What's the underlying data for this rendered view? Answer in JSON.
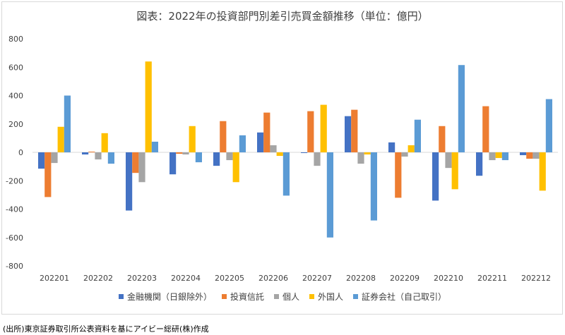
{
  "chart_data": {
    "type": "bar",
    "title": "図表：2022年の投資部門別差引売買金額推移（単位：億円）",
    "categories": [
      "202201",
      "202202",
      "202203",
      "202204",
      "202205",
      "202206",
      "202207",
      "202208",
      "202209",
      "202210",
      "202211",
      "202212"
    ],
    "series": [
      {
        "name": "金融機関（日銀除外）",
        "color": "#4472c4",
        "values": [
          -115,
          -15,
          -410,
          -155,
          -95,
          140,
          -5,
          255,
          70,
          -340,
          -165,
          -20
        ]
      },
      {
        "name": "投資信託",
        "color": "#ed7d31",
        "values": [
          -315,
          5,
          -145,
          -10,
          220,
          280,
          290,
          300,
          -320,
          185,
          325,
          -45
        ]
      },
      {
        "name": "個人",
        "color": "#a5a5a5",
        "values": [
          -75,
          -50,
          -210,
          -15,
          -55,
          50,
          -95,
          -80,
          -30,
          -110,
          -55,
          -45
        ]
      },
      {
        "name": "外国人",
        "color": "#ffc000",
        "values": [
          180,
          135,
          640,
          185,
          -210,
          -25,
          335,
          -15,
          50,
          -260,
          -40,
          -270
        ]
      },
      {
        "name": "証券会社（自己取引）",
        "color": "#5b9bd5",
        "values": [
          400,
          -80,
          75,
          -70,
          120,
          -305,
          -600,
          -480,
          230,
          615,
          -55,
          375
        ]
      }
    ],
    "ylim": [
      -800,
      800
    ],
    "yticks": [
      800,
      600,
      400,
      200,
      0,
      -200,
      -400,
      -600,
      -800
    ],
    "grid": false,
    "legend_position": "bottom"
  },
  "source_note": "(出所)東京証券取引所公表資料を基にアイビー総研(株)作成"
}
